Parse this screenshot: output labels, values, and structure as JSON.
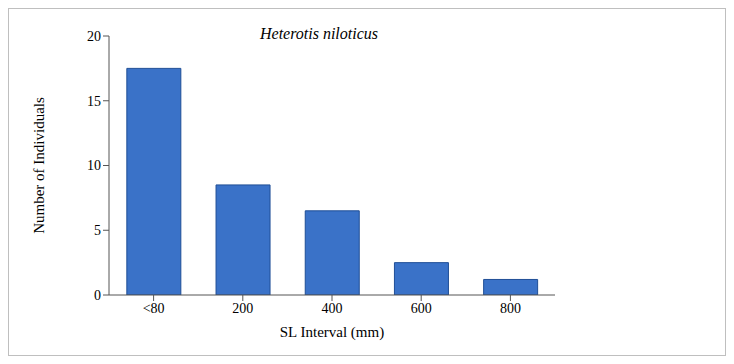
{
  "chart_data": {
    "type": "bar",
    "title": "Heterotis niloticus",
    "x_label": "SL Interval (mm)",
    "y_label": "Number of Individuals",
    "categories": [
      "<80",
      "200",
      "400",
      "600",
      "800"
    ],
    "values": [
      17.5,
      8.5,
      6.5,
      2.5,
      1.2
    ],
    "color": "#3a72c8",
    "ylim": [
      0,
      20
    ],
    "yticks": [
      0,
      5,
      10,
      15,
      20
    ],
    "grid": false
  }
}
